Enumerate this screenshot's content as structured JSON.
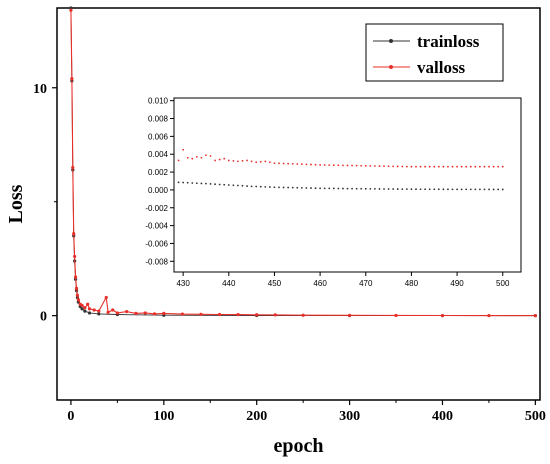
{
  "chart_data": [
    {
      "type": "line",
      "xlabel": "epoch",
      "ylabel": "Loss",
      "xlim": [
        -15,
        505
      ],
      "ylim": [
        -3.7,
        13.5
      ],
      "xticks": [
        "0",
        "100",
        "200",
        "300",
        "400",
        "500"
      ],
      "yticks": [
        "0",
        "10"
      ],
      "grid": false,
      "legend_position": "top-right",
      "colors": {
        "trainloss": "#333333",
        "valloss": "#e8302a"
      },
      "series": [
        {
          "name": "trainloss",
          "x": [
            0,
            1,
            2,
            3,
            4,
            5,
            6,
            7,
            8,
            10,
            12,
            15,
            20,
            30,
            50,
            100,
            200,
            300,
            400,
            500
          ],
          "values": [
            13.5,
            10.3,
            6.4,
            3.5,
            2.4,
            1.6,
            1.1,
            0.8,
            0.6,
            0.4,
            0.3,
            0.2,
            0.12,
            0.08,
            0.05,
            0.02,
            0.008,
            0.004,
            0.002,
            0.001
          ]
        },
        {
          "name": "valloss",
          "x": [
            0,
            1,
            2,
            3,
            4,
            5,
            6,
            7,
            8,
            10,
            12,
            15,
            18,
            20,
            25,
            30,
            38,
            40,
            45,
            50,
            60,
            70,
            80,
            90,
            100,
            120,
            140,
            160,
            180,
            200,
            220,
            250,
            300,
            350,
            400,
            450,
            500
          ],
          "values": [
            13.4,
            10.4,
            6.5,
            3.6,
            2.6,
            1.7,
            1.2,
            0.9,
            0.7,
            0.5,
            0.45,
            0.35,
            0.5,
            0.3,
            0.25,
            0.2,
            0.8,
            0.15,
            0.25,
            0.12,
            0.18,
            0.1,
            0.12,
            0.08,
            0.1,
            0.07,
            0.06,
            0.05,
            0.045,
            0.04,
            0.035,
            0.02,
            0.015,
            0.01,
            0.006,
            0.004,
            0.003
          ]
        }
      ]
    },
    {
      "type": "line",
      "xlim": [
        428,
        504
      ],
      "ylim": [
        -0.0092,
        0.0103
      ],
      "xticks": [
        "430",
        "440",
        "450",
        "460",
        "470",
        "480",
        "490",
        "500"
      ],
      "yticks": [
        "-0.008",
        "-0.006",
        "-0.004",
        "-0.002",
        "0.000",
        "0.002",
        "0.004",
        "0.006",
        "0.008",
        "0.010"
      ],
      "series": [
        {
          "name": "trainloss",
          "x": [
            429,
            435,
            440,
            445,
            450,
            460,
            470,
            480,
            490,
            500
          ],
          "values": [
            0.00085,
            0.0007,
            0.00055,
            0.0004,
            0.0003,
            0.00018,
            0.00012,
            8e-05,
            6e-05,
            5e-05
          ]
        },
        {
          "name": "valloss",
          "x": [
            429,
            430,
            431,
            432,
            433,
            434,
            435,
            436,
            437,
            438,
            439,
            440,
            442,
            444,
            446,
            448,
            450,
            455,
            460,
            470,
            480,
            490,
            500
          ],
          "values": [
            0.0033,
            0.0045,
            0.0036,
            0.0035,
            0.0037,
            0.0036,
            0.0039,
            0.0038,
            0.0033,
            0.0034,
            0.0035,
            0.0033,
            0.0032,
            0.0033,
            0.0031,
            0.0032,
            0.003,
            0.0029,
            0.0028,
            0.0027,
            0.0026,
            0.0026,
            0.0026
          ]
        }
      ]
    }
  ]
}
